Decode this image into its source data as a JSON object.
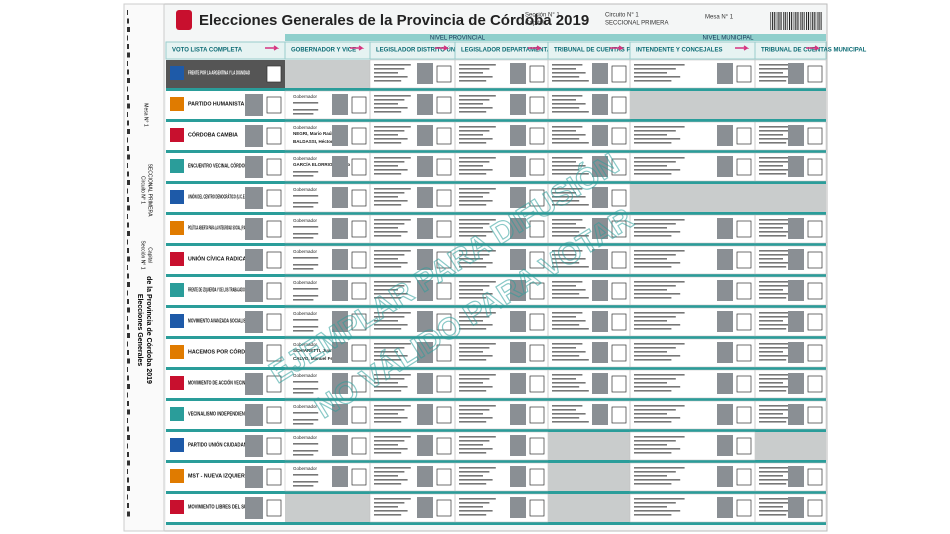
{
  "header": {
    "title": "Elecciones Generales de la Provincia de Córdoba 2019",
    "seccion": "Sección N° 1",
    "seccion_name": "Capital",
    "circuito": "Circuito N° 1",
    "circuito_name": "SECCIONAL PRIMERA",
    "mesa": "Mesa N° 1"
  },
  "side": {
    "title_1": "Elecciones Generales",
    "title_2": "de la Provincia de Córdoba 2019"
  },
  "levels": [
    "NIVEL PROVINCIAL",
    "NIVEL MUNICIPAL"
  ],
  "columns": [
    "VOTO LISTA COMPLETA",
    "GOBERNADOR Y VICE",
    "LEGISLADOR DISTRITO ÚNICO",
    "LEGISLADOR DEPARTAMENTAL",
    "TRIBUNAL DE CUENTAS PROVINCIAL",
    "INTENDENTE Y CONCEJALES",
    "TRIBUNAL DE CUENTAS MUNICIPAL"
  ],
  "rows": [
    {
      "party": "FRENTE POR LA ARGENTINA Y LA DIGNIDAD"
    },
    {
      "party": "PARTIDO HUMANISTA",
      "governor": {
        "title": "Gobernador"
      }
    },
    {
      "party": "CÓRDOBA CAMBIA",
      "governor": {
        "title": "Gobernador",
        "name": "NEGRI, Mario Raúl",
        "vice": "BALDASSI, Héctor"
      }
    },
    {
      "party": "ENCUENTRO VECINAL CÓRDOBA",
      "governor": {
        "title": "Gobernador",
        "name": "GARCÍA ELORRIO, Aurelio"
      }
    },
    {
      "party": "UNIÓN DEL CENTRO DEMOCRÁTICO (U.C.E.DE)",
      "governor": {
        "title": "Gobernador"
      }
    },
    {
      "party": "POLÍTICA ABIERTA PARA LA INTEGRIDAD SOCIAL (P.A.I.S.)",
      "governor": {
        "title": "Gobernador"
      }
    },
    {
      "party": "UNIÓN CÍVICA RADICAL",
      "governor": {
        "title": "Gobernador"
      }
    },
    {
      "party": "FRENTE DE IZQUIERDA Y DE LOS TRABAJADORES",
      "governor": {
        "title": "Gobernador"
      }
    },
    {
      "party": "MOVIMIENTO AVANZADA SOCIALISTA",
      "governor": {
        "title": "Gobernador"
      }
    },
    {
      "party": "HACEMOS POR CÓRDOBA",
      "governor": {
        "title": "Gobernador",
        "name": "SCHIARETTI, Juan",
        "vice": "CALVO, Manuel Fernando"
      }
    },
    {
      "party": "MOVIMIENTO DE ACCIÓN VECINAL",
      "governor": {
        "title": "Gobernador"
      }
    },
    {
      "party": "VECINALISMO INDEPENDIENTE",
      "governor": {
        "title": "Gobernador"
      }
    },
    {
      "party": "PARTIDO UNIÓN CIUDADANA",
      "governor": {
        "title": "Gobernador"
      }
    },
    {
      "party": "MST - NUEVA IZQUIERDA",
      "governor": {
        "title": "Gobernador"
      }
    },
    {
      "party": "MOVIMIENTO LIBRES DEL SUR"
    }
  ],
  "watermark": [
    "EJEMPLAR PARA DIFUSIÓN",
    "NO VÁLIDO PARA VOTAR"
  ]
}
